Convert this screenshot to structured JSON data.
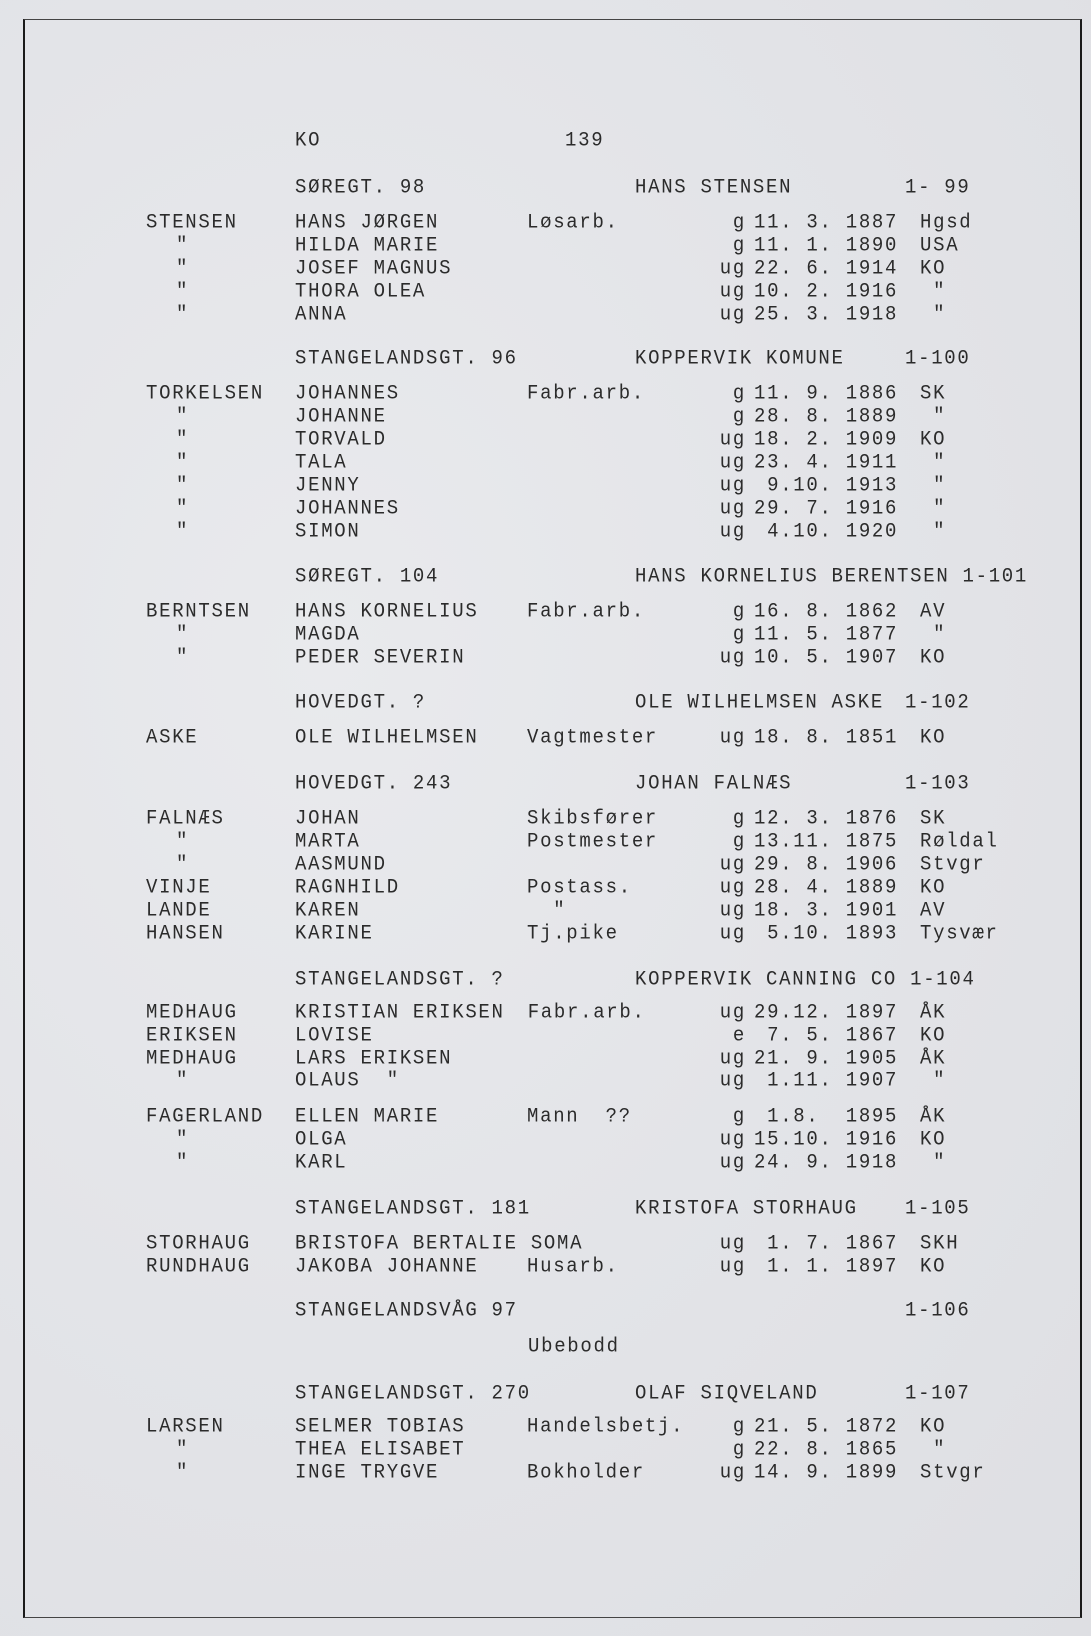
{
  "header": {
    "place_code": "KO",
    "page_number": "139"
  },
  "sections": [
    {
      "address": "SØREGT. 98",
      "owner": "HANS STENSEN",
      "number": "1- 99",
      "rows": [
        {
          "surname": "STENSEN",
          "first": "HANS JØRGEN",
          "occupation": "Løsarb.",
          "status": "g",
          "date": "11. 3. 1887",
          "place": "Hgsd"
        },
        {
          "surname": "\"",
          "first": "HILDA MARIE",
          "occupation": "",
          "status": "g",
          "date": "11. 1. 1890",
          "place": "USA"
        },
        {
          "surname": "\"",
          "first": "JOSEF MAGNUS",
          "occupation": "",
          "status": "ug",
          "date": "22. 6. 1914",
          "place": "KO"
        },
        {
          "surname": "\"",
          "first": "THORA OLEA",
          "occupation": "",
          "status": "ug",
          "date": "10. 2. 1916",
          "place": " \""
        },
        {
          "surname": "\"",
          "first": "ANNA",
          "occupation": "",
          "status": "ug",
          "date": "25. 3. 1918",
          "place": " \""
        }
      ]
    },
    {
      "address": "STANGELANDSGT. 96",
      "owner": "KOPPERVIK KOMUNE",
      "number": "1-100",
      "rows": [
        {
          "surname": "TORKELSEN",
          "first": "JOHANNES",
          "occupation": "Fabr.arb.",
          "status": "g",
          "date": "11. 9. 1886",
          "place": "SK"
        },
        {
          "surname": "\"",
          "first": "JOHANNE",
          "occupation": "",
          "status": "g",
          "date": "28. 8. 1889",
          "place": " \""
        },
        {
          "surname": "\"",
          "first": "TORVALD",
          "occupation": "",
          "status": "ug",
          "date": "18. 2. 1909",
          "place": "KO"
        },
        {
          "surname": "\"",
          "first": "TALA",
          "occupation": "",
          "status": "ug",
          "date": "23. 4. 1911",
          "place": " \""
        },
        {
          "surname": "\"",
          "first": "JENNY",
          "occupation": "",
          "status": "ug",
          "date": " 9.10. 1913",
          "place": " \""
        },
        {
          "surname": "\"",
          "first": "JOHANNES",
          "occupation": "",
          "status": "ug",
          "date": "29. 7. 1916",
          "place": " \""
        },
        {
          "surname": "\"",
          "first": "SIMON",
          "occupation": "",
          "status": "ug",
          "date": " 4.10. 1920",
          "place": " \""
        }
      ]
    },
    {
      "address": "SØREGT. 104",
      "owner": "HANS KORNELIUS BERENTSEN",
      "number": "1-101",
      "rows": [
        {
          "surname": "BERNTSEN",
          "first": "HANS KORNELIUS",
          "occupation": "Fabr.arb.",
          "status": "g",
          "date": "16. 8. 1862",
          "place": "AV"
        },
        {
          "surname": "\"",
          "first": "MAGDA",
          "occupation": "",
          "status": "g",
          "date": "11. 5. 1877",
          "place": " \""
        },
        {
          "surname": "\"",
          "first": "PEDER SEVERIN",
          "occupation": "",
          "status": "ug",
          "date": "10. 5. 1907",
          "place": "KO"
        }
      ]
    },
    {
      "address": "HOVEDGT. ?",
      "owner": "OLE WILHELMSEN ASKE",
      "number": "1-102",
      "rows": [
        {
          "surname": "ASKE",
          "first": "OLE WILHELMSEN",
          "occupation": "Vagtmester",
          "status": "ug",
          "date": "18. 8. 1851",
          "place": "KO"
        }
      ]
    },
    {
      "address": "HOVEDGT. 243",
      "owner": "JOHAN FALNÆS",
      "number": "1-103",
      "rows": [
        {
          "surname": "FALNÆS",
          "first": "JOHAN",
          "occupation": "Skibsfører",
          "status": "g",
          "date": "12. 3. 1876",
          "place": "SK"
        },
        {
          "surname": "\"",
          "first": "MARTA",
          "occupation": "Postmester",
          "status": "g",
          "date": "13.11. 1875",
          "place": "Røldal"
        },
        {
          "surname": "\"",
          "first": "AASMUND",
          "occupation": "",
          "status": "ug",
          "date": "29. 8. 1906",
          "place": "Stvgr"
        },
        {
          "surname": "VINJE",
          "first": "RAGNHILD",
          "occupation": "Postass.",
          "status": "ug",
          "date": "28. 4. 1889",
          "place": "KO"
        },
        {
          "surname": "LANDE",
          "first": "KAREN",
          "occupation": "  \"",
          "status": "ug",
          "date": "18. 3. 1901",
          "place": "AV"
        },
        {
          "surname": "HANSEN",
          "first": "KARINE",
          "occupation": "Tj.pike",
          "status": "ug",
          "date": " 5.10. 1893",
          "place": "Tysvær"
        }
      ]
    },
    {
      "address": "STANGELANDSGT. ?",
      "owner": "KOPPERVIK CANNING CO",
      "number": "1-104",
      "rows": [
        {
          "surname": "MEDHAUG",
          "first": "KRISTIAN ERIKSEN",
          "occupation": "Fabr.arb.",
          "status": "ug",
          "date": "29.12. 1897",
          "place": "ÅK"
        },
        {
          "surname": "ERIKSEN",
          "first": "LOVISE",
          "occupation": "",
          "status": "e",
          "date": " 7. 5. 1867",
          "place": "KO"
        },
        {
          "surname": "MEDHAUG",
          "first": "LARS ERIKSEN",
          "occupation": "",
          "status": "ug",
          "date": "21. 9. 1905",
          "place": "ÅK"
        },
        {
          "surname": "\"",
          "first": "OLAUS  \"",
          "occupation": "",
          "status": "ug",
          "date": " 1.11. 1907",
          "place": " \""
        },
        {
          "surname": "FAGERLAND",
          "first": "ELLEN MARIE",
          "occupation": "Mann  ??",
          "status": "g",
          "date": " 1.8.  1895",
          "place": "ÅK"
        },
        {
          "surname": "\"",
          "first": "OLGA",
          "occupation": "",
          "status": "ug",
          "date": "15.10. 1916",
          "place": "KO"
        },
        {
          "surname": "\"",
          "first": "KARL",
          "occupation": "",
          "status": "ug",
          "date": "24. 9. 1918",
          "place": " \""
        }
      ]
    },
    {
      "address": "STANGELANDSGT. 181",
      "owner": "KRISTOFA STORHAUG",
      "number": "1-105",
      "rows": [
        {
          "surname": "STORHAUG",
          "first": "BRISTOFA BERTALIE SOMA",
          "occupation": "",
          "status": "ug",
          "date": " 1. 7. 1867",
          "place": "SKH"
        },
        {
          "surname": "RUNDHAUG",
          "first": "JAKOBA JOHANNE",
          "occupation": "Husarb.",
          "status": "ug",
          "date": " 1. 1. 1897",
          "place": "KO"
        }
      ]
    },
    {
      "address": "STANGELANDSVÅG 97",
      "owner": "",
      "number": "1-106",
      "note": "Ubebodd",
      "rows": []
    },
    {
      "address": "STANGELANDSGT. 270",
      "owner": "OLAF SIQVELAND",
      "number": "1-107",
      "rows": [
        {
          "surname": "LARSEN",
          "first": "SELMER TOBIAS",
          "occupation": "Handelsbetj.",
          "status": "g",
          "date": "21. 5. 1872",
          "place": "KO"
        },
        {
          "surname": "\"",
          "first": "THEA ELISABET",
          "occupation": "",
          "status": "g",
          "date": "22. 8. 1865",
          "place": " \""
        },
        {
          "surname": "\"",
          "first": "INGE TRYGVE",
          "occupation": "Bokholder",
          "status": "ug",
          "date": "14. 9. 1899",
          "place": "Stvgr"
        }
      ]
    }
  ]
}
